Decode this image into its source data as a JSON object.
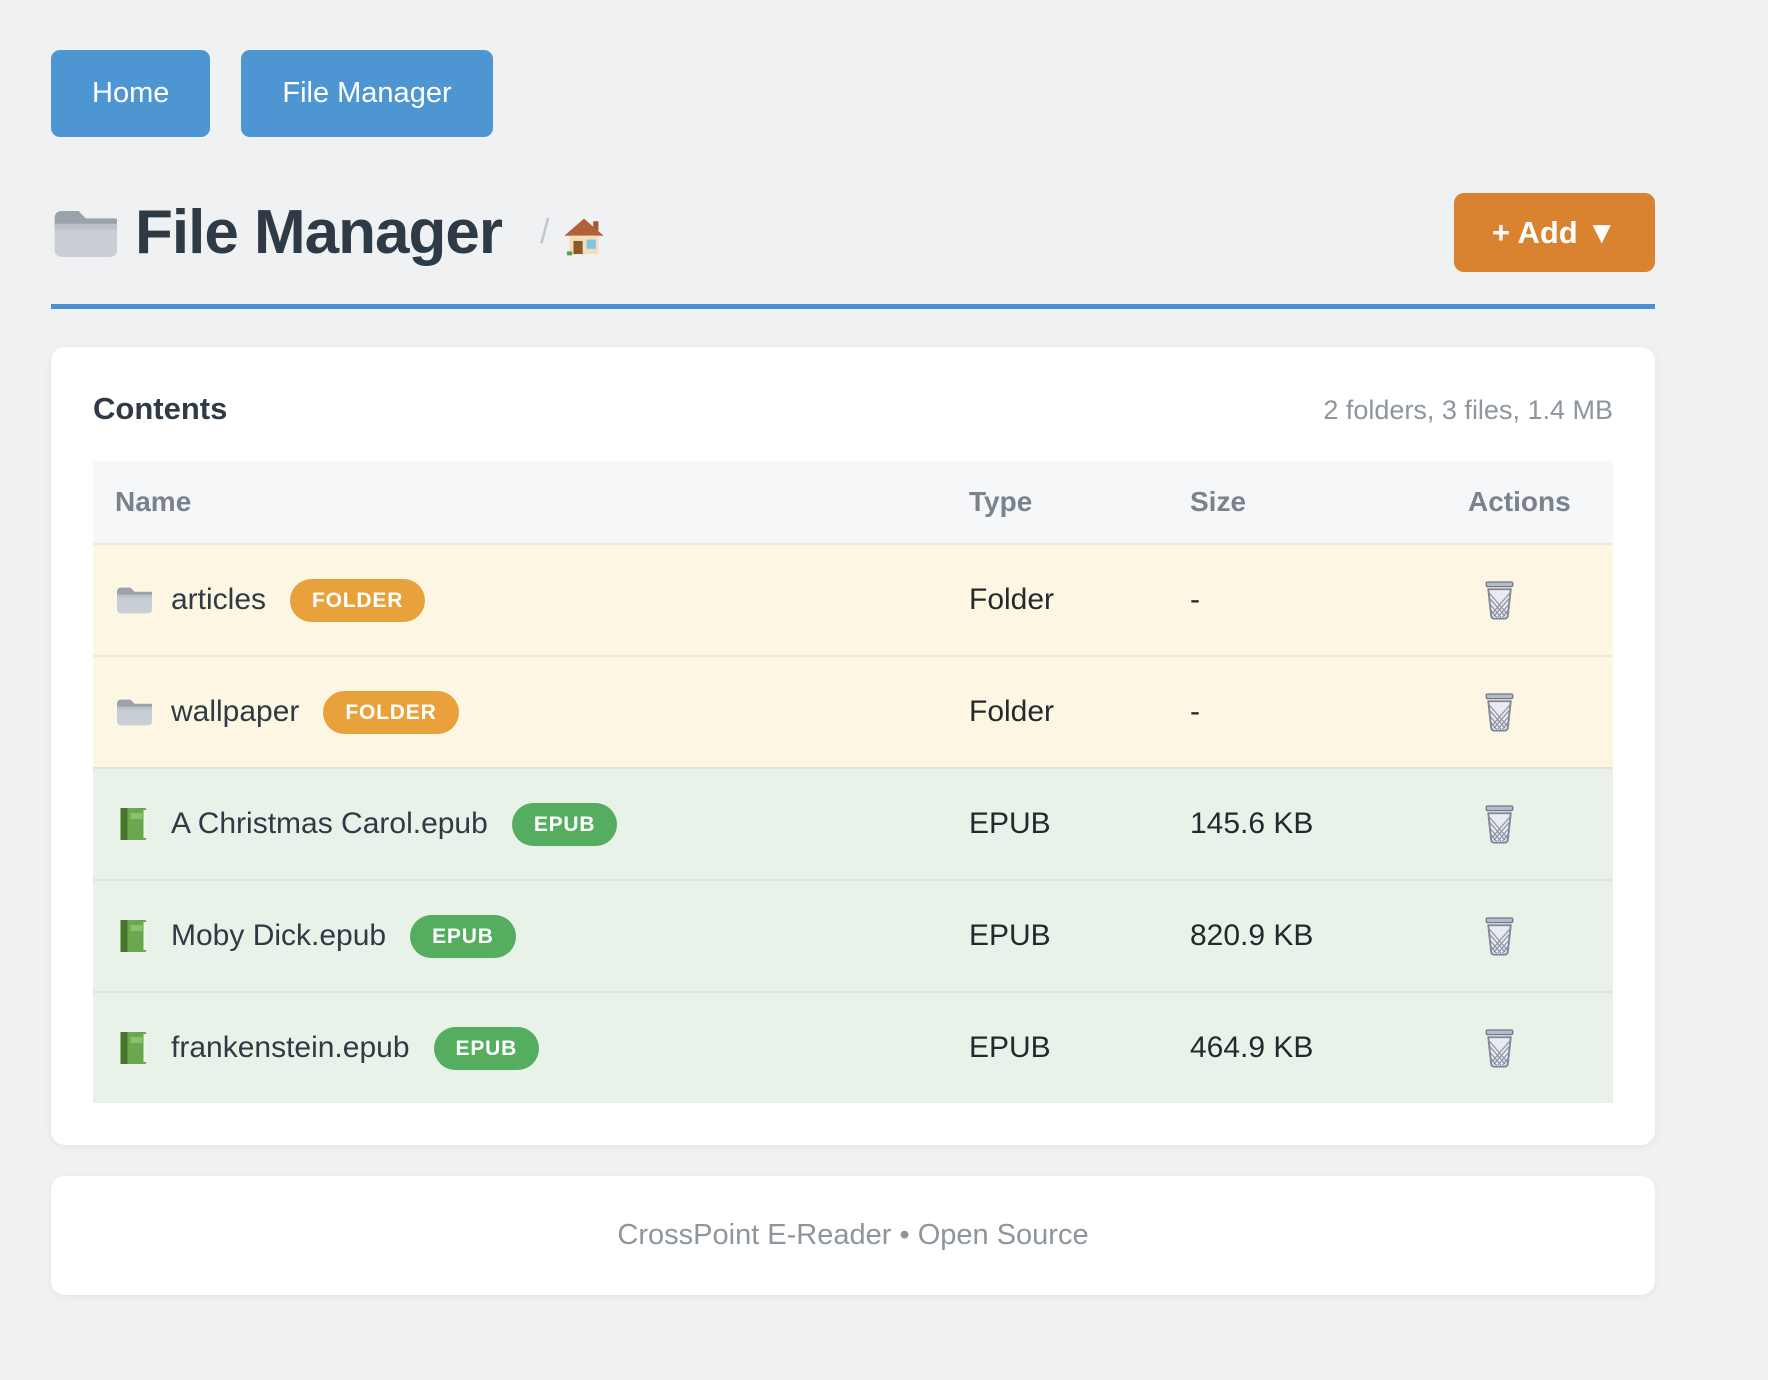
{
  "nav": {
    "buttons": [
      {
        "label": "Home"
      },
      {
        "label": "File Manager"
      }
    ]
  },
  "header": {
    "title": "File Manager",
    "title_icon": "folder-icon",
    "breadcrumb_separator": "/",
    "breadcrumb_home_icon": "home-icon",
    "add_button_label": "+ Add ▼"
  },
  "content": {
    "heading": "Contents",
    "summary": "2 folders, 3 files, 1.4 MB",
    "table": {
      "columns": [
        "Name",
        "Type",
        "Size",
        "Actions"
      ],
      "rows": [
        {
          "name": "articles",
          "badge": "FOLDER",
          "kind": "folder",
          "icon": "folder-icon",
          "type": "Folder",
          "size": "-",
          "action_icon": "trash-icon"
        },
        {
          "name": "wallpaper",
          "badge": "FOLDER",
          "kind": "folder",
          "icon": "folder-icon",
          "type": "Folder",
          "size": "-",
          "action_icon": "trash-icon"
        },
        {
          "name": "A Christmas Carol.epub",
          "badge": "EPUB",
          "kind": "epub",
          "icon": "book-icon",
          "type": "EPUB",
          "size": "145.6 KB",
          "action_icon": "trash-icon"
        },
        {
          "name": "Moby Dick.epub",
          "badge": "EPUB",
          "kind": "epub",
          "icon": "book-icon",
          "type": "EPUB",
          "size": "820.9 KB",
          "action_icon": "trash-icon"
        },
        {
          "name": "frankenstein.epub",
          "badge": "EPUB",
          "kind": "epub",
          "icon": "book-icon",
          "type": "EPUB",
          "size": "464.9 KB",
          "action_icon": "trash-icon"
        }
      ]
    }
  },
  "footer": {
    "text": "CrossPoint E-Reader • Open Source"
  },
  "colors": {
    "page_bg": "#f0f1f2",
    "primary_blue": "#4e96d2",
    "divider_blue": "#4a90d2",
    "accent_orange": "#d9822f",
    "badge_folder_orange": "#e9a23b",
    "badge_epub_green": "#55ae5f",
    "row_folder_bg": "#fdf6e3",
    "row_epub_bg": "#e9f2e8",
    "table_header_bg": "#f5f7f9",
    "heading_text": "#2e3a46",
    "muted_text": "#8d969d"
  }
}
